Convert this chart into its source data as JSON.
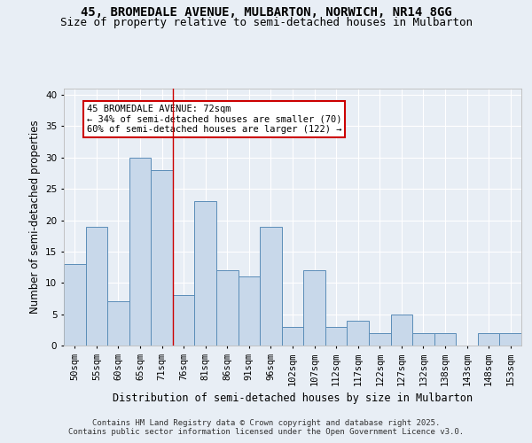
{
  "title_line1": "45, BROMEDALE AVENUE, MULBARTON, NORWICH, NR14 8GG",
  "title_line2": "Size of property relative to semi-detached houses in Mulbarton",
  "xlabel": "Distribution of semi-detached houses by size in Mulbarton",
  "ylabel": "Number of semi-detached properties",
  "categories": [
    "50sqm",
    "55sqm",
    "60sqm",
    "65sqm",
    "71sqm",
    "76sqm",
    "81sqm",
    "86sqm",
    "91sqm",
    "96sqm",
    "102sqm",
    "107sqm",
    "112sqm",
    "117sqm",
    "122sqm",
    "127sqm",
    "132sqm",
    "138sqm",
    "143sqm",
    "148sqm",
    "153sqm"
  ],
  "values": [
    13,
    19,
    7,
    30,
    28,
    8,
    23,
    12,
    11,
    19,
    3,
    12,
    3,
    4,
    2,
    5,
    2,
    2,
    0,
    2,
    2
  ],
  "bar_color": "#c8d8ea",
  "bar_edge_color": "#5b8db8",
  "red_line_index": 4,
  "annotation_text": "45 BROMEDALE AVENUE: 72sqm\n← 34% of semi-detached houses are smaller (70)\n60% of semi-detached houses are larger (122) →",
  "annotation_box_color": "#ffffff",
  "annotation_box_edge": "#cc0000",
  "ylim": [
    0,
    41
  ],
  "yticks": [
    0,
    5,
    10,
    15,
    20,
    25,
    30,
    35,
    40
  ],
  "background_color": "#e8eef5",
  "plot_background": "#e8eef5",
  "footer_line1": "Contains HM Land Registry data © Crown copyright and database right 2025.",
  "footer_line2": "Contains public sector information licensed under the Open Government Licence v3.0.",
  "title_fontsize": 10,
  "subtitle_fontsize": 9,
  "axis_label_fontsize": 8.5,
  "tick_fontsize": 7.5,
  "annotation_fontsize": 7.5,
  "footer_fontsize": 6.5
}
